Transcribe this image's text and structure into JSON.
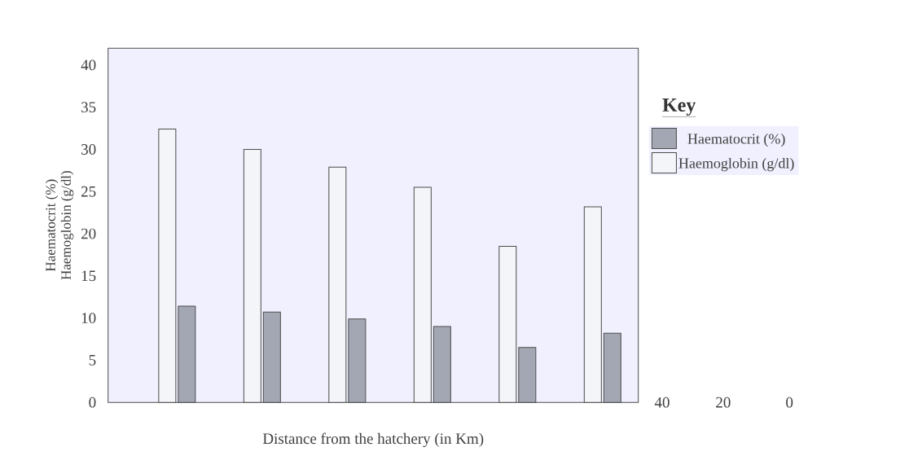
{
  "chart_data": {
    "type": "bar",
    "xlabel": "Distance from the hatchery (in Km)",
    "ylabel": "Haematocrit  (%)\nHaemoglobin (g/dl)",
    "legend_title": "Key",
    "categories": [
      null,
      null,
      null,
      null,
      null,
      null
    ],
    "series": [
      {
        "name": "Haemoglobin (g/dl)",
        "color": "#f4f5f9",
        "values": [
          32.4,
          30.0,
          27.9,
          25.5,
          18.5,
          23.2
        ]
      },
      {
        "name": "Haematocrit  (%)",
        "color": "#a3a7b3",
        "values": [
          11.4,
          10.7,
          9.9,
          9.0,
          6.5,
          8.2
        ]
      }
    ],
    "ylim": [
      0,
      42
    ],
    "yticks": [
      0,
      5,
      10,
      15,
      20,
      25,
      30,
      35,
      40
    ],
    "annotations": [
      "40",
      "20",
      "0"
    ],
    "legend": "right",
    "grid": false,
    "tick_labels": "y"
  }
}
